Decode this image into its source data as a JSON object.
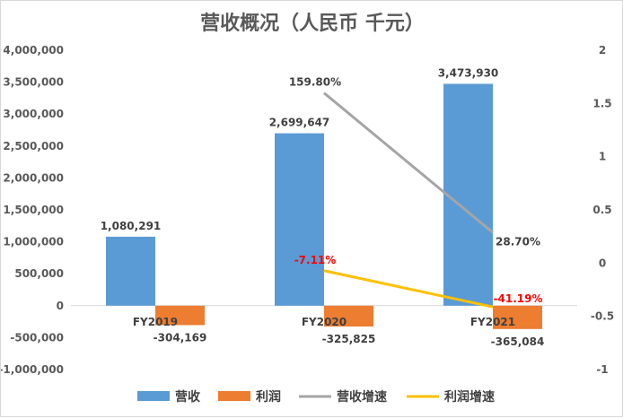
{
  "chart_data": {
    "type": "bar",
    "title": "营收概况（人民币 千元）",
    "categories": [
      "FY2019",
      "FY2020",
      "FY2021"
    ],
    "series": [
      {
        "name": "营收",
        "kind": "bar",
        "axis": "left",
        "color": "#5b9bd5",
        "values": [
          1080291,
          2699647,
          3473930
        ],
        "labels": [
          "1,080,291",
          "2,699,647",
          "3,473,930"
        ]
      },
      {
        "name": "利润",
        "kind": "bar",
        "axis": "left",
        "color": "#ed7d31",
        "values": [
          -304169,
          -325825,
          -365084
        ],
        "labels": [
          "-304,169",
          "-325,825",
          "-365,084"
        ]
      },
      {
        "name": "营收增速",
        "kind": "line",
        "axis": "right",
        "color": "#a5a5a5",
        "values": [
          null,
          1.598,
          0.287
        ],
        "labels": [
          "",
          "159.80%",
          "28.70%"
        ]
      },
      {
        "name": "利润增速",
        "kind": "line",
        "axis": "right",
        "color": "#ffc000",
        "values": [
          null,
          -0.0711,
          -0.4119
        ],
        "labels": [
          "",
          "-7.11%",
          "-41.19%"
        ]
      }
    ],
    "y_left": {
      "min": -1000000,
      "max": 4000000,
      "step": 500000,
      "tick_labels": [
        "-1,000,000",
        "-500,000",
        "0",
        "500,000",
        "1,000,000",
        "1,500,000",
        "2,000,000",
        "2,500,000",
        "3,000,000",
        "3,500,000",
        "4,000,000"
      ]
    },
    "y_right": {
      "min": -1,
      "max": 2,
      "step": 0.5,
      "tick_labels": [
        "-1",
        "-0.5",
        "0",
        "0.5",
        "1",
        "1.5",
        "2"
      ]
    },
    "grid": false,
    "legend": "bottom",
    "negative_line_label_color": "#ff0000"
  }
}
